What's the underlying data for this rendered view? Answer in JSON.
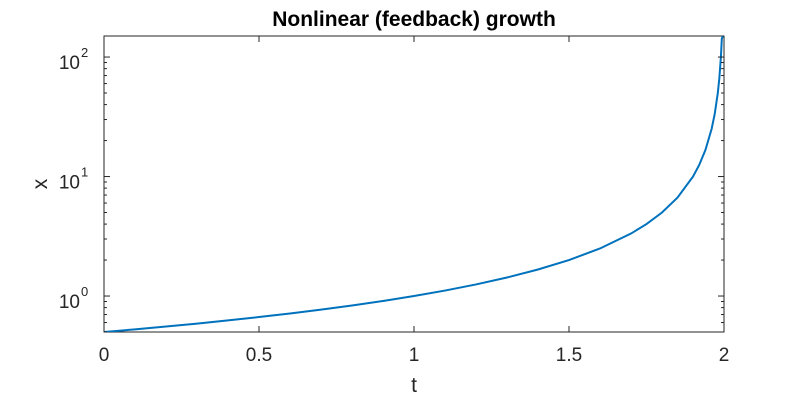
{
  "chart_data": {
    "type": "line",
    "title": "Nonlinear (feedback) growth",
    "xlabel": "t",
    "ylabel": "x",
    "xlim": [
      0,
      2
    ],
    "ylim": [
      0.5,
      150
    ],
    "yscale": "log",
    "grid": false,
    "line_color": "#0072bd",
    "x_ticks": [
      {
        "value": 0,
        "label": "0"
      },
      {
        "value": 0.5,
        "label": "0.5"
      },
      {
        "value": 1,
        "label": "1"
      },
      {
        "value": 1.5,
        "label": "1.5"
      },
      {
        "value": 2,
        "label": "2"
      }
    ],
    "y_ticks": [
      {
        "value": 1,
        "base": "10",
        "exponent": "0"
      },
      {
        "value": 10,
        "base": "10",
        "exponent": "1"
      },
      {
        "value": 100,
        "base": "10",
        "exponent": "2"
      }
    ],
    "series": [
      {
        "x": [
          0,
          0.1,
          0.2,
          0.3,
          0.4,
          0.5,
          0.6,
          0.7,
          0.8,
          0.9,
          1.0,
          1.1,
          1.2,
          1.3,
          1.4,
          1.5,
          1.6,
          1.7,
          1.75,
          1.8,
          1.85,
          1.9,
          1.92,
          1.94,
          1.96,
          1.97,
          1.98,
          1.985,
          1.99,
          1.993,
          1.9967
        ],
        "y": [
          0.5,
          0.526,
          0.556,
          0.588,
          0.625,
          0.667,
          0.714,
          0.769,
          0.833,
          0.909,
          1.0,
          1.111,
          1.25,
          1.429,
          1.667,
          2.0,
          2.5,
          3.333,
          4.0,
          5.0,
          6.667,
          10.0,
          12.5,
          16.67,
          25.0,
          33.33,
          50.0,
          66.67,
          100.0,
          142.9,
          150.0
        ]
      }
    ]
  }
}
